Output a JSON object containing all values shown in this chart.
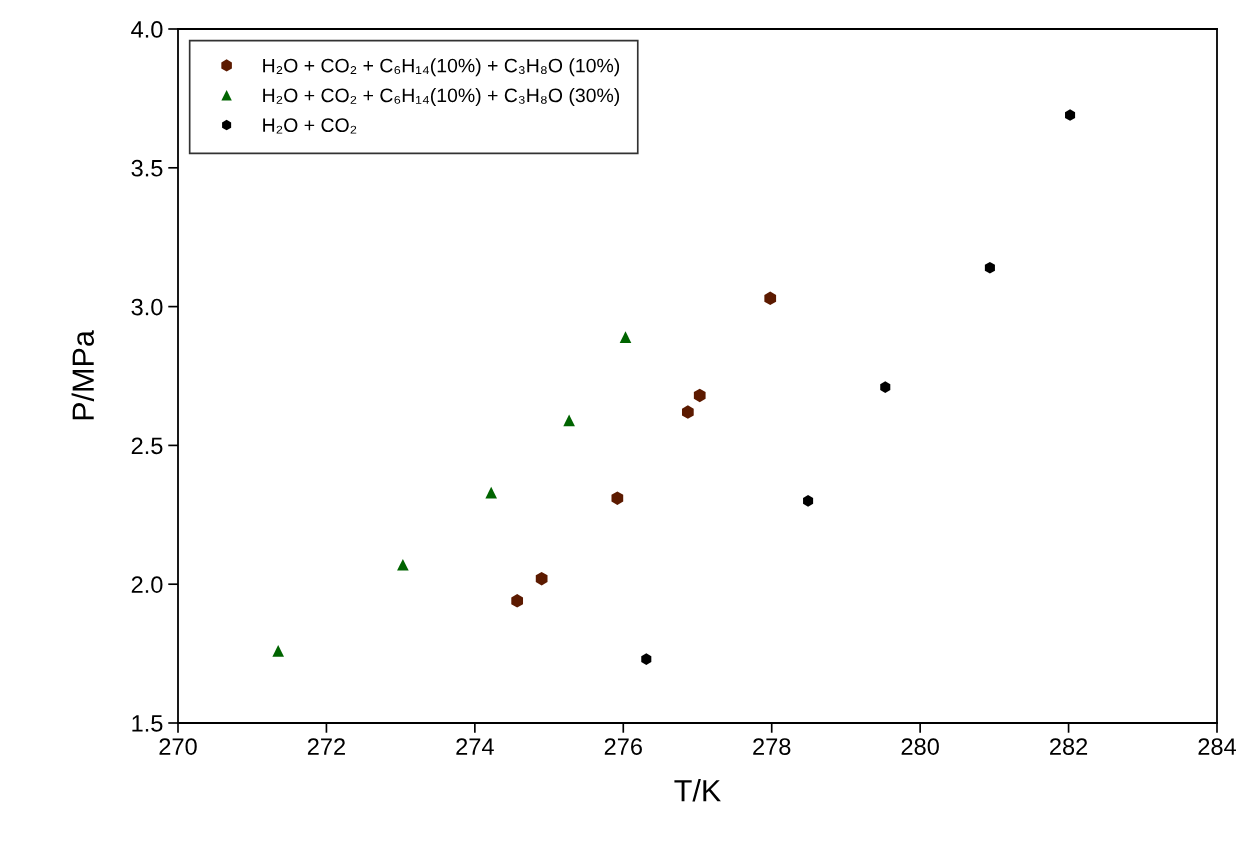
{
  "chart_data": {
    "type": "scatter",
    "xlabel": "T/K",
    "ylabel": "P/MPa",
    "xlim": [
      270,
      284
    ],
    "xticks": [
      270,
      272,
      274,
      276,
      278,
      280,
      282,
      284
    ],
    "ylim": [
      1.5,
      4.0
    ],
    "yticks": [
      {
        "value": 1.5,
        "label": "1.5"
      },
      {
        "value": 2.0,
        "label": "2.0"
      },
      {
        "value": 2.5,
        "label": "2.5"
      },
      {
        "value": 3.0,
        "label": "3.0"
      },
      {
        "value": 3.5,
        "label": "3.5"
      },
      {
        "value": 4.0,
        "label": "4.0"
      }
    ],
    "grid": false,
    "legend": "top left",
    "series": [
      {
        "name": "H₂O + CO₂ + C₆H₁₄(10%) + C₃H₈O (10%)",
        "color": "#5c1a00",
        "marker": "circle",
        "x": [
          274.57,
          274.9,
          275.92,
          276.87,
          277.03,
          277.98
        ],
        "values": [
          1.94,
          2.02,
          2.31,
          2.62,
          2.68,
          3.03
        ]
      },
      {
        "name": "H₂O + CO₂ + C₆H₁₄(10%) + C₃H₈O (30%)",
        "color": "#006400",
        "marker": "triangle",
        "x": [
          271.35,
          273.03,
          274.22,
          275.27,
          276.03
        ],
        "values": [
          1.76,
          2.07,
          2.33,
          2.59,
          2.89
        ]
      },
      {
        "name": "H₂O + CO₂",
        "color": "#000000",
        "marker": "circle",
        "x": [
          276.31,
          278.49,
          279.53,
          280.94,
          282.02
        ],
        "values": [
          1.73,
          2.3,
          2.71,
          3.14,
          3.69
        ]
      }
    ]
  }
}
